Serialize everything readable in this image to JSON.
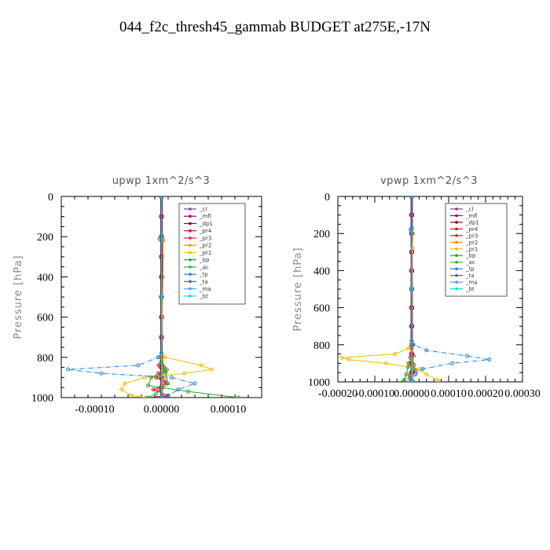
{
  "title": "044_f2c_thresh45_gammab  BUDGET at275E,-17N",
  "legend_labels": [
    "_cl",
    "_mfl",
    "_dp1",
    "_pr4",
    "_pr3",
    "_pr2",
    "_pr1",
    "_bp",
    "_ac",
    "_tp",
    "_ta",
    "_ma",
    "_bt"
  ],
  "chart_data": [
    {
      "type": "line",
      "title": "upwp   1xm^2/s^3",
      "xlabel": "",
      "ylabel": "Pressure [hPa]",
      "xlim": [
        -0.00015,
        0.00015
      ],
      "ylim": [
        1000,
        0
      ],
      "y_ticks": [
        0,
        200,
        400,
        600,
        800,
        1000
      ],
      "x_ticks": [
        -0.0001,
        0.0,
        0.0001
      ],
      "x_tick_labels": [
        "-0.00010",
        "0.00000",
        "0.00010"
      ],
      "legend_position": "top-right",
      "series": [
        {
          "name": "_cl",
          "color": "#7b3fa0",
          "y": [
            0,
            100,
            200,
            300,
            400,
            500,
            600,
            700,
            800,
            850,
            900,
            950,
            1000
          ],
          "x": [
            0,
            0,
            0,
            0,
            0,
            0,
            0,
            0,
            0,
            0,
            0,
            0,
            0
          ]
        },
        {
          "name": "_mfl",
          "color": "#b0006a",
          "y": [
            0,
            100,
            200,
            300,
            400,
            500,
            600,
            700,
            800,
            850,
            900,
            950,
            1000
          ],
          "x": [
            0,
            0,
            0,
            0,
            0,
            0,
            0,
            0,
            0,
            0,
            0,
            0,
            0
          ]
        },
        {
          "name": "_dp1",
          "color": "#8b0030",
          "y": [
            0,
            100,
            200,
            300,
            400,
            500,
            600,
            700,
            800,
            850,
            900,
            950,
            1000
          ],
          "x": [
            0,
            0,
            0,
            0,
            0,
            0,
            0,
            0,
            0,
            0,
            0,
            0,
            0
          ]
        },
        {
          "name": "_pr4",
          "color": "#d01020",
          "y": [
            800,
            840,
            870,
            900,
            930,
            960,
            990,
            1000
          ],
          "x": [
            0,
            -4e-06,
            6e-06,
            -8e-06,
            8e-06,
            -1.2e-05,
            1e-05,
            -2e-05
          ]
        },
        {
          "name": "_pr3",
          "color": "#e02040",
          "y": [
            800,
            850,
            880,
            920,
            960,
            1000
          ],
          "x": [
            0,
            4e-06,
            -5e-06,
            6e-06,
            -4e-06,
            5e-06
          ]
        },
        {
          "name": "_pr2",
          "color": "#ff8c00",
          "y": [
            200,
            210,
            220,
            800,
            900,
            1000
          ],
          "x": [
            0,
            2e-06,
            3e-06,
            0,
            2e-06,
            0
          ]
        },
        {
          "name": "_pr1",
          "color": "#e8c000",
          "y": [
            780,
            800,
            840,
            860,
            880,
            900,
            930,
            960,
            990,
            1000
          ],
          "x": [
            0,
            5e-06,
            6e-05,
            7.5e-05,
            3.5e-05,
            -2.5e-05,
            -5.5e-05,
            -6e-05,
            -4.5e-05,
            -2.5e-05
          ]
        },
        {
          "name": "_bp",
          "color": "#2ca02c",
          "y": [
            820,
            860,
            900,
            940,
            970,
            1000
          ],
          "x": [
            0,
            8e-06,
            -1.5e-05,
            -2e-05,
            4e-05,
            0.000115
          ]
        },
        {
          "name": "_ac",
          "color": "#20c040",
          "y": [
            820,
            880,
            930,
            980,
            1000
          ],
          "x": [
            0,
            6e-06,
            1e-05,
            -8e-06,
            -2e-05
          ]
        },
        {
          "name": "_tp",
          "color": "#1f7fd0",
          "y": [
            200,
            210,
            220,
            780,
            800,
            840,
            860,
            880,
            900,
            930,
            960,
            990,
            1000
          ],
          "x": [
            0,
            -3e-06,
            0,
            0,
            -5e-06,
            -3.5e-05,
            -0.00014,
            -9e-05,
            1.5e-05,
            5e-05,
            2.5e-05,
            1e-05,
            0
          ]
        },
        {
          "name": "_ta",
          "color": "#4060c0",
          "y": [
            0,
            500,
            1000
          ],
          "x": [
            0,
            0,
            0
          ]
        },
        {
          "name": "_ma",
          "color": "#40a0ff",
          "y": [
            0,
            500,
            1000
          ],
          "x": [
            0,
            0,
            0
          ]
        },
        {
          "name": "_bt",
          "color": "#00e0e0",
          "y": [
            0,
            500,
            1000
          ],
          "x": [
            0,
            0,
            0
          ]
        }
      ]
    },
    {
      "type": "line",
      "title": "vpwp   1xm^2/s^3",
      "xlabel": "",
      "ylabel": "Pressure [hPa]",
      "xlim": [
        -0.0002,
        0.0003
      ],
      "ylim": [
        1000,
        0
      ],
      "y_ticks": [
        0,
        200,
        400,
        600,
        800,
        1000
      ],
      "x_ticks": [
        -0.0002,
        -0.0001,
        0.0,
        0.0001,
        0.0002,
        0.0003
      ],
      "x_tick_labels": [
        "-0.00020",
        "-0.00010",
        "0.00000",
        "0.00010",
        "0.00020",
        "0.00030"
      ],
      "legend_position": "top-right",
      "series": [
        {
          "name": "_cl",
          "color": "#7b3fa0",
          "y": [
            0,
            100,
            200,
            300,
            400,
            500,
            600,
            700,
            800,
            850,
            900,
            950,
            1000
          ],
          "x": [
            0,
            0,
            0,
            0,
            0,
            0,
            0,
            0,
            0,
            0,
            0,
            0,
            0
          ]
        },
        {
          "name": "_mfl",
          "color": "#b0006a",
          "y": [
            0,
            100,
            200,
            300,
            400,
            500,
            600,
            700,
            800,
            850,
            900,
            950,
            1000
          ],
          "x": [
            0,
            0,
            0,
            0,
            0,
            0,
            0,
            0,
            0,
            0,
            0,
            0,
            0
          ]
        },
        {
          "name": "_dp1",
          "color": "#8b0030",
          "y": [
            0,
            100,
            200,
            300,
            400,
            500,
            600,
            700,
            800,
            850,
            900,
            950,
            1000
          ],
          "x": [
            0,
            0,
            0,
            0,
            0,
            0,
            0,
            0,
            0,
            0,
            0,
            0,
            0
          ]
        },
        {
          "name": "_pr4",
          "color": "#d01020",
          "y": [
            820,
            860,
            900,
            940,
            980,
            1000
          ],
          "x": [
            0,
            5e-06,
            -8e-06,
            1e-05,
            -6e-06,
            4e-06
          ]
        },
        {
          "name": "_pr3",
          "color": "#e02040",
          "y": [
            820,
            870,
            910,
            960,
            1000
          ],
          "x": [
            0,
            -4e-06,
            6e-06,
            -5e-06,
            3e-06
          ]
        },
        {
          "name": "_pr2",
          "color": "#ff8c00",
          "y": [
            180,
            200,
            280,
            820,
            900,
            1000
          ],
          "x": [
            0,
            3e-06,
            2e-06,
            0,
            3e-06,
            0
          ]
        },
        {
          "name": "_pr1",
          "color": "#e8c000",
          "y": [
            780,
            820,
            850,
            870,
            880,
            900,
            930,
            960,
            990,
            1000
          ],
          "x": [
            0,
            -1e-05,
            -4.5e-05,
            -0.00019,
            -0.00017,
            -7e-05,
            2e-05,
            4e-05,
            7e-05,
            7.5e-05
          ]
        },
        {
          "name": "_bp",
          "color": "#2ca02c",
          "y": [
            880,
            920,
            960,
            990,
            1000
          ],
          "x": [
            0,
            -1e-05,
            -1.5e-05,
            -2e-05,
            -2.5e-05
          ]
        },
        {
          "name": "_ac",
          "color": "#20c040",
          "y": [
            880,
            930,
            970,
            1000
          ],
          "x": [
            0,
            6e-06,
            -4e-06,
            3e-06
          ]
        },
        {
          "name": "_tp",
          "color": "#1f7fd0",
          "y": [
            170,
            180,
            200,
            780,
            800,
            830,
            860,
            880,
            900,
            930,
            960,
            1000
          ],
          "x": [
            0,
            -3e-06,
            0,
            0,
            5e-06,
            4e-05,
            0.00015,
            0.00021,
            0.00011,
            3e-05,
            1e-05,
            0
          ]
        },
        {
          "name": "_ta",
          "color": "#4060c0",
          "y": [
            0,
            500,
            1000
          ],
          "x": [
            0,
            0,
            0
          ]
        },
        {
          "name": "_ma",
          "color": "#40a0ff",
          "y": [
            0,
            500,
            1000
          ],
          "x": [
            0,
            0,
            0
          ]
        },
        {
          "name": "_bt",
          "color": "#00e0e0",
          "y": [
            0,
            500,
            1000
          ],
          "x": [
            0,
            0,
            0
          ]
        }
      ]
    }
  ]
}
